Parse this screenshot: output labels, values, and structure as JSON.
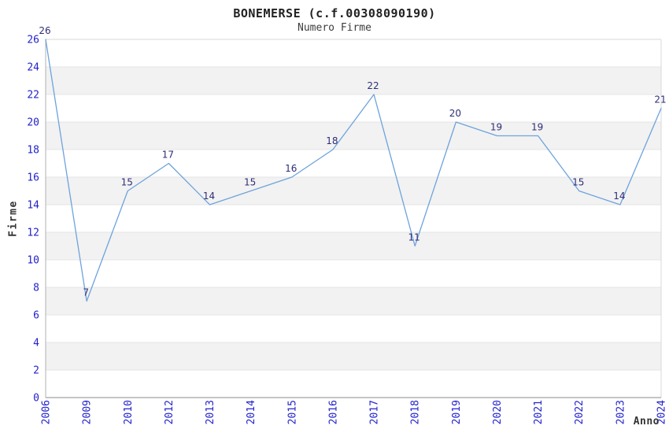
{
  "chart_data": {
    "type": "line",
    "title": "BONEMERSE (c.f.00308090190)",
    "subtitle": "Numero Firme",
    "xlabel": "Anno",
    "ylabel": "Firme",
    "categories": [
      "2006",
      "2009",
      "2010",
      "2012",
      "2013",
      "2014",
      "2015",
      "2016",
      "2017",
      "2018",
      "2019",
      "2020",
      "2021",
      "2022",
      "2023",
      "2024"
    ],
    "values": [
      26,
      7,
      15,
      17,
      14,
      15,
      16,
      18,
      22,
      11,
      20,
      19,
      19,
      15,
      14,
      21
    ],
    "data_labels_shown": true,
    "ylim": [
      0,
      26
    ],
    "ytick_step": 2,
    "grid": "horizontal",
    "legend": "none",
    "band_fill": "alternating-horizontal",
    "colors": {
      "line": "#6da3dc",
      "tick_label": "#2222cc",
      "data_label": "#2e2e77",
      "band": "#f2f2f2",
      "grid": "#e4e4e4",
      "axis": "#b0b0b0",
      "border": "#d8d8d8",
      "title": "#222222",
      "subtitle": "#3c3c3c",
      "axis_title": "#333333",
      "background": "#ffffff"
    }
  }
}
